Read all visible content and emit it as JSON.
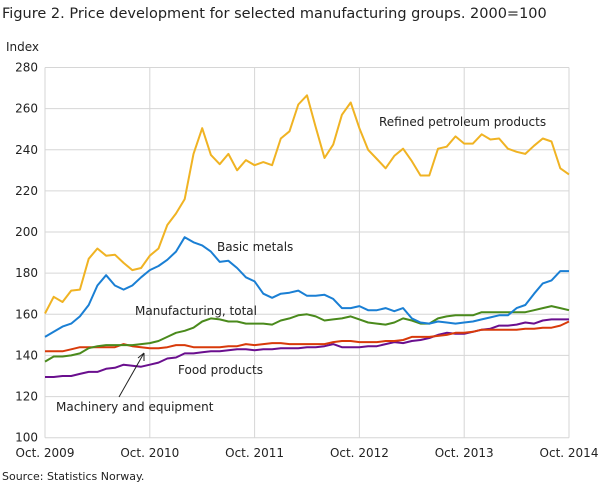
{
  "chart_data": {
    "type": "line",
    "title": "Figure 2. Price development for selected manufacturing groups. 2000=100",
    "ylabel": "Index",
    "xlabel": "",
    "ylim": [
      100,
      280
    ],
    "yticks": [
      100,
      120,
      140,
      160,
      180,
      200,
      220,
      240,
      260,
      280
    ],
    "x_start": "Oct. 2009",
    "x_end": "Oct. 2014",
    "x_frequency": "monthly",
    "xticks": [
      "Oct. 2009",
      "Oct. 2010",
      "Oct. 2011",
      "Oct. 2012",
      "Oct. 2013",
      "Oct. 2014"
    ],
    "grid": true,
    "legend": "inline labels",
    "source": "Source: Statistics Norway.",
    "series": [
      {
        "name": "Refined petroleum products",
        "color": "#f0b323",
        "values": [
          160.4,
          168.5,
          166,
          171.5,
          172,
          187,
          192,
          188.5,
          189,
          185,
          181.5,
          182.5,
          188.5,
          192,
          203.4,
          209,
          216,
          238,
          250.5,
          237.5,
          233,
          238,
          230,
          235,
          232.5,
          234,
          232.5,
          245.5,
          249,
          262,
          266.5,
          251,
          236,
          242.5,
          257,
          263,
          250.5,
          240,
          235.5,
          231,
          237,
          240.5,
          234.5,
          227.5,
          227.5,
          240.5,
          241.5,
          246.5,
          243,
          243,
          247.5,
          245,
          245.5,
          240.5,
          239,
          238,
          242,
          245.5,
          244,
          231,
          228
        ]
      },
      {
        "name": "Basic metals",
        "color": "#1a7fd4",
        "values": [
          149,
          151.5,
          154,
          155.5,
          159,
          164.5,
          174,
          179,
          174,
          172,
          174,
          178,
          181.5,
          183.5,
          186.5,
          190.5,
          197.5,
          195,
          193.5,
          190.5,
          185.5,
          186,
          182.5,
          178,
          176,
          170,
          168,
          170,
          170.5,
          171.5,
          169,
          169,
          169.5,
          167.5,
          163,
          163,
          164,
          162,
          162,
          163,
          161.5,
          163,
          158,
          156,
          155.5,
          156.5,
          156,
          155.5,
          156,
          156.5,
          157.5,
          158.5,
          159.5,
          159.5,
          163,
          164.5,
          170,
          175,
          176.5,
          181,
          181
        ]
      },
      {
        "name": "Manufacturing, total",
        "color": "#4a8a1c",
        "values": [
          137,
          139.5,
          139.5,
          140,
          141,
          143.5,
          144.5,
          145,
          145,
          145,
          145,
          145.5,
          146,
          147,
          149,
          151,
          152,
          153.5,
          156.5,
          158,
          157.5,
          156.5,
          156.5,
          155.5,
          155.5,
          155.5,
          155,
          157,
          158,
          159.5,
          160,
          159,
          157,
          157.5,
          158,
          159,
          157.5,
          156,
          155.5,
          155,
          156,
          158,
          157,
          155.5,
          155.5,
          158,
          159,
          159.5,
          159.5,
          159.5,
          161,
          161,
          161,
          161,
          161,
          161,
          162,
          163,
          164,
          163,
          162
        ]
      },
      {
        "name": "Machinery and equipment",
        "color": "#d83a0a",
        "values": [
          142,
          142,
          142,
          143,
          144,
          144,
          144,
          144,
          144,
          145.5,
          144.5,
          144,
          143.5,
          143.5,
          144,
          145,
          145,
          144,
          144,
          144,
          144,
          144.5,
          144.5,
          145.5,
          145,
          145.5,
          146,
          146,
          145.5,
          145.5,
          145.5,
          145.5,
          145.5,
          146.5,
          147,
          147,
          146.5,
          146.5,
          146.5,
          147,
          147,
          147.5,
          149,
          149,
          149,
          149.5,
          150,
          151,
          151,
          151.5,
          152.5,
          152.5,
          152.5,
          152.5,
          152.5,
          153,
          153,
          153.5,
          153.5,
          154.5,
          156.5
        ]
      },
      {
        "name": "Food products",
        "color": "#6a0f8e",
        "values": [
          129.5,
          129.5,
          130,
          130,
          131,
          132,
          132,
          133.5,
          134,
          135.5,
          135,
          134.5,
          135.5,
          136.5,
          138.5,
          139,
          141,
          141,
          141.5,
          142,
          142,
          142.5,
          143,
          143,
          142.5,
          143,
          143,
          143.5,
          143.5,
          143.5,
          144,
          144,
          144.5,
          145.5,
          144,
          144,
          144,
          144.5,
          144.5,
          145.5,
          146.5,
          146,
          147,
          147.5,
          148.5,
          150,
          151,
          150.5,
          150.5,
          151.5,
          152.5,
          153,
          154.5,
          154.5,
          155,
          156,
          155.5,
          157,
          157.5,
          157.5,
          157.5
        ]
      }
    ]
  }
}
